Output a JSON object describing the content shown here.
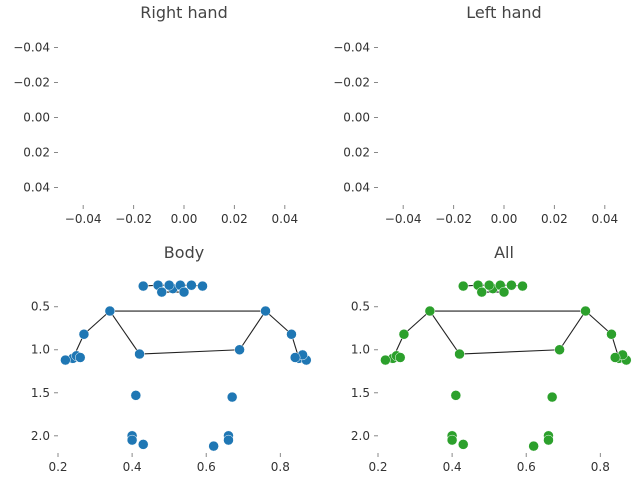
{
  "chart_data": [
    {
      "type": "scatter",
      "title": "Right hand",
      "xlabel": "",
      "ylabel": "",
      "xlim": [
        -0.05,
        0.05
      ],
      "ylim": [
        -0.05,
        0.05
      ],
      "y_inverted": true,
      "grid": false,
      "xticks": [
        -0.04,
        -0.02,
        0.0,
        0.02,
        0.04
      ],
      "xtick_labels": [
        "−0.04",
        "−0.02",
        "0.00",
        "0.02",
        "0.04"
      ],
      "yticks": [
        -0.04,
        -0.02,
        0.0,
        0.02,
        0.04
      ],
      "ytick_labels": [
        "−0.04",
        "−0.02",
        "0.00",
        "0.02",
        "0.04"
      ],
      "points": [],
      "edges": []
    },
    {
      "type": "scatter",
      "title": "Left hand",
      "xlabel": "",
      "ylabel": "",
      "xlim": [
        -0.05,
        0.05
      ],
      "ylim": [
        -0.05,
        0.05
      ],
      "y_inverted": true,
      "grid": false,
      "xticks": [
        -0.04,
        -0.02,
        0.0,
        0.02,
        0.04
      ],
      "xtick_labels": [
        "−0.04",
        "−0.02",
        "0.00",
        "0.02",
        "0.04"
      ],
      "yticks": [
        -0.04,
        -0.02,
        0.0,
        0.02,
        0.04
      ],
      "ytick_labels": [
        "−0.04",
        "−0.02",
        "0.00",
        "0.02",
        "0.04"
      ],
      "points": [],
      "edges": []
    },
    {
      "type": "scatter",
      "title": "Body",
      "xlabel": "",
      "ylabel": "",
      "xlim": [
        0.2,
        0.88
      ],
      "ylim": [
        0.05,
        2.2
      ],
      "y_inverted": true,
      "grid": false,
      "color": "#1f77b4",
      "xticks": [
        0.2,
        0.4,
        0.6,
        0.8
      ],
      "xtick_labels": [
        "0.2",
        "0.4",
        "0.6",
        "0.8"
      ],
      "yticks": [
        0.5,
        1.0,
        1.5,
        2.0
      ],
      "ytick_labels": [
        "0.5",
        "1.0",
        "1.5",
        "2.0"
      ],
      "points": [
        [
          0.51,
          0.29
        ],
        [
          0.53,
          0.25
        ],
        [
          0.56,
          0.25
        ],
        [
          0.5,
          0.25
        ],
        [
          0.47,
          0.25
        ],
        [
          0.59,
          0.26
        ],
        [
          0.43,
          0.26
        ],
        [
          0.54,
          0.33
        ],
        [
          0.48,
          0.33
        ],
        [
          0.76,
          0.55
        ],
        [
          0.34,
          0.55
        ],
        [
          0.83,
          0.82
        ],
        [
          0.27,
          0.82
        ],
        [
          0.85,
          1.1
        ],
        [
          0.24,
          1.1
        ],
        [
          0.87,
          1.12
        ],
        [
          0.22,
          1.12
        ],
        [
          0.86,
          1.06
        ],
        [
          0.25,
          1.07
        ],
        [
          0.84,
          1.09
        ],
        [
          0.26,
          1.09
        ],
        [
          0.69,
          1.0
        ],
        [
          0.42,
          1.05
        ],
        [
          0.67,
          1.55
        ],
        [
          0.41,
          1.53
        ],
        [
          0.66,
          2.0
        ],
        [
          0.4,
          2.0
        ],
        [
          0.66,
          2.05
        ],
        [
          0.4,
          2.05
        ],
        [
          0.62,
          2.12
        ],
        [
          0.43,
          2.1
        ]
      ],
      "edges": [
        [
          9,
          10
        ],
        [
          9,
          11
        ],
        [
          11,
          13
        ],
        [
          10,
          12
        ],
        [
          12,
          14
        ],
        [
          9,
          21
        ],
        [
          10,
          22
        ],
        [
          21,
          22
        ],
        [
          13,
          15
        ],
        [
          13,
          17
        ],
        [
          15,
          19
        ],
        [
          14,
          16
        ],
        [
          14,
          18
        ],
        [
          16,
          20
        ],
        [
          0,
          1
        ],
        [
          1,
          2
        ],
        [
          0,
          3
        ],
        [
          3,
          4
        ],
        [
          2,
          5
        ],
        [
          4,
          6
        ],
        [
          7,
          8
        ]
      ]
    },
    {
      "type": "scatter",
      "title": "All",
      "xlabel": "",
      "ylabel": "",
      "xlim": [
        0.2,
        0.88
      ],
      "ylim": [
        0.05,
        2.2
      ],
      "y_inverted": true,
      "grid": false,
      "color": "#2ca02c",
      "xticks": [
        0.2,
        0.4,
        0.6,
        0.8
      ],
      "xtick_labels": [
        "0.2",
        "0.4",
        "0.6",
        "0.8"
      ],
      "yticks": [
        0.5,
        1.0,
        1.5,
        2.0
      ],
      "ytick_labels": [
        "0.5",
        "1.0",
        "1.5",
        "2.0"
      ],
      "points": [
        [
          0.51,
          0.29
        ],
        [
          0.53,
          0.25
        ],
        [
          0.56,
          0.25
        ],
        [
          0.5,
          0.25
        ],
        [
          0.47,
          0.25
        ],
        [
          0.59,
          0.26
        ],
        [
          0.43,
          0.26
        ],
        [
          0.54,
          0.33
        ],
        [
          0.48,
          0.33
        ],
        [
          0.76,
          0.55
        ],
        [
          0.34,
          0.55
        ],
        [
          0.83,
          0.82
        ],
        [
          0.27,
          0.82
        ],
        [
          0.85,
          1.1
        ],
        [
          0.24,
          1.1
        ],
        [
          0.87,
          1.12
        ],
        [
          0.22,
          1.12
        ],
        [
          0.86,
          1.06
        ],
        [
          0.25,
          1.07
        ],
        [
          0.84,
          1.09
        ],
        [
          0.26,
          1.09
        ],
        [
          0.69,
          1.0
        ],
        [
          0.42,
          1.05
        ],
        [
          0.67,
          1.55
        ],
        [
          0.41,
          1.53
        ],
        [
          0.66,
          2.0
        ],
        [
          0.4,
          2.0
        ],
        [
          0.66,
          2.05
        ],
        [
          0.4,
          2.05
        ],
        [
          0.62,
          2.12
        ],
        [
          0.43,
          2.1
        ]
      ],
      "edges": [
        [
          9,
          10
        ],
        [
          9,
          11
        ],
        [
          11,
          13
        ],
        [
          10,
          12
        ],
        [
          12,
          14
        ],
        [
          9,
          21
        ],
        [
          10,
          22
        ],
        [
          21,
          22
        ],
        [
          13,
          15
        ],
        [
          13,
          17
        ],
        [
          15,
          19
        ],
        [
          14,
          16
        ],
        [
          14,
          18
        ],
        [
          16,
          20
        ],
        [
          0,
          1
        ],
        [
          1,
          2
        ],
        [
          0,
          3
        ],
        [
          3,
          4
        ],
        [
          2,
          5
        ],
        [
          4,
          6
        ],
        [
          7,
          8
        ]
      ]
    }
  ]
}
